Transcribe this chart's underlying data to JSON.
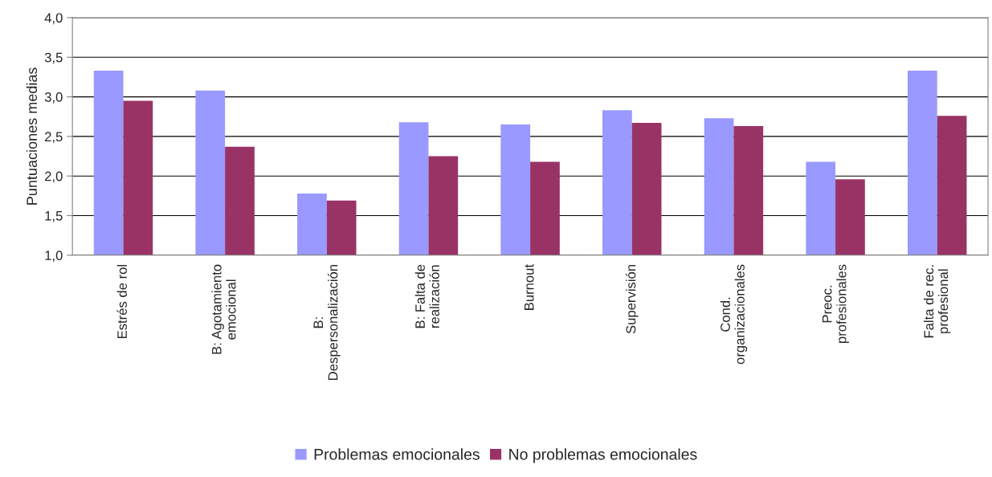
{
  "chart_data": {
    "type": "bar",
    "ylabel": "Puntuaciones medias",
    "categories": [
      "Estrés de rol",
      "B: Agotamiento\nemocional",
      "B:\nDespersonalización",
      "B: Falta de\nrealización",
      "Burnout",
      "Supervisión",
      "Cond.\norganizacionales",
      "Preoc.\nprofesionales",
      "Falta de rec.\nprofesional"
    ],
    "series": [
      {
        "name": "Problemas emocionales",
        "color": "#9999ff",
        "values": [
          3.33,
          3.08,
          1.78,
          2.68,
          2.65,
          2.83,
          2.73,
          2.18,
          3.33
        ]
      },
      {
        "name": "No problemas emocionales",
        "color": "#993366",
        "values": [
          2.95,
          2.37,
          1.69,
          2.25,
          2.18,
          2.67,
          2.63,
          1.96,
          2.76
        ]
      }
    ],
    "ylim": [
      1.0,
      4.0
    ],
    "yticks": [
      {
        "value": 1.0,
        "label": "1,0"
      },
      {
        "value": 1.5,
        "label": "1,5"
      },
      {
        "value": 2.0,
        "label": "2,0"
      },
      {
        "value": 2.5,
        "label": "2,5"
      },
      {
        "value": 3.0,
        "label": "3,0"
      },
      {
        "value": 3.5,
        "label": "3,5"
      },
      {
        "value": 4.0,
        "label": "4,0"
      }
    ],
    "grid": "y",
    "legend": "bottom"
  }
}
